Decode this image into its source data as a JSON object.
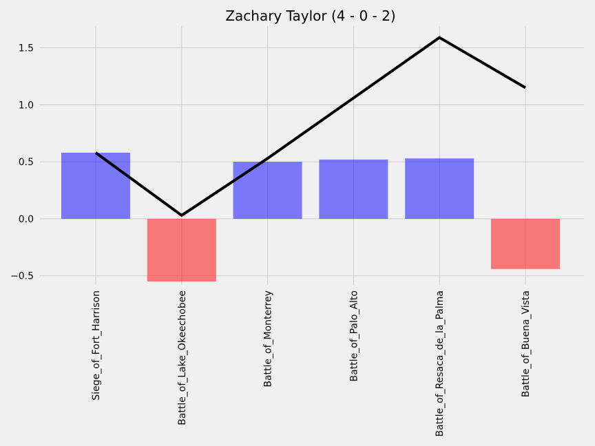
{
  "chart_data": {
    "type": "bar",
    "title": "Zachary Taylor (4 - 0 - 2)",
    "xlabel": "",
    "ylabel": "",
    "categories": [
      "Siege_of_Fort_Harrison",
      "Battle_of_Lake_Okeechobee",
      "Battle_of_Monterrey",
      "Battle_of_Palo_Alto",
      "Battle_of_Resaca_de_la_Palma",
      "Battle_of_Buena_Vista"
    ],
    "values": [
      0.58,
      -0.55,
      0.5,
      0.52,
      0.53,
      -0.44
    ],
    "line_values": [
      0.58,
      0.03,
      0.53,
      1.06,
      1.59,
      1.15
    ],
    "ylim": [
      -0.58,
      1.69
    ],
    "yticks": [
      "−0.5",
      "0.0",
      "0.5",
      "1.0",
      "1.5"
    ],
    "ytick_values": [
      -0.5,
      0.0,
      0.5,
      1.0,
      1.5
    ],
    "grid": true,
    "colors": {
      "positive": "#0000ff",
      "negative": "#ff0000",
      "line": "#000000",
      "background": "#f0f0f0",
      "grid": "#cbcbcb"
    }
  }
}
